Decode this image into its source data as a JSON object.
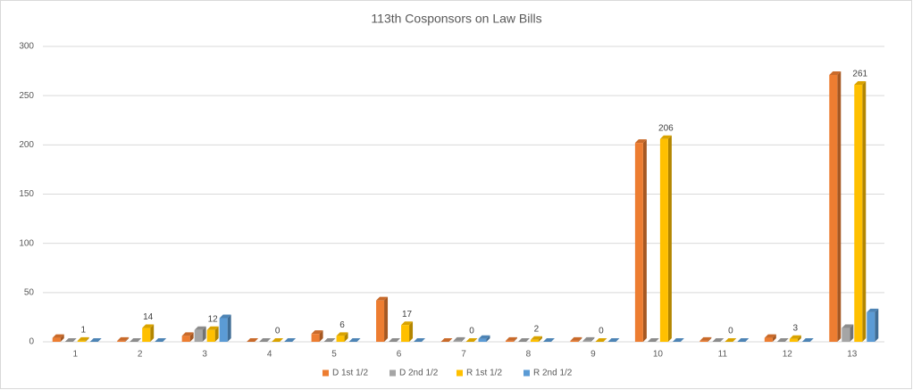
{
  "chart_data": {
    "type": "bar3d",
    "title": "113th Cosponsors on Law Bills",
    "categories": [
      "1",
      "2",
      "3",
      "4",
      "5",
      "6",
      "7",
      "8",
      "9",
      "10",
      "11",
      "12",
      "13"
    ],
    "series": [
      {
        "name": "D 1st 1/2",
        "color": "#ed7d31",
        "values": [
          4,
          1,
          6,
          0,
          8,
          42,
          0,
          1,
          1,
          202,
          1,
          4,
          271
        ]
      },
      {
        "name": "D 2nd 1/2",
        "color": "#a5a5a5",
        "values": [
          0,
          0,
          12,
          0,
          0,
          0,
          1,
          0,
          1,
          0,
          0,
          0,
          14
        ]
      },
      {
        "name": "R 1st 1/2",
        "color": "#ffc000",
        "values": [
          1,
          14,
          12,
          0,
          6,
          17,
          0,
          2,
          0,
          206,
          0,
          3,
          261
        ],
        "data_labels": true
      },
      {
        "name": "R 2nd 1/2",
        "color": "#5b9bd5",
        "values": [
          0,
          0,
          24,
          0,
          0,
          0,
          3,
          0,
          0,
          0,
          0,
          0,
          30
        ]
      }
    ],
    "ylim": [
      0,
      300
    ],
    "yticks": [
      0,
      50,
      100,
      150,
      200,
      250,
      300
    ],
    "grid": true,
    "legend": "bottom"
  }
}
